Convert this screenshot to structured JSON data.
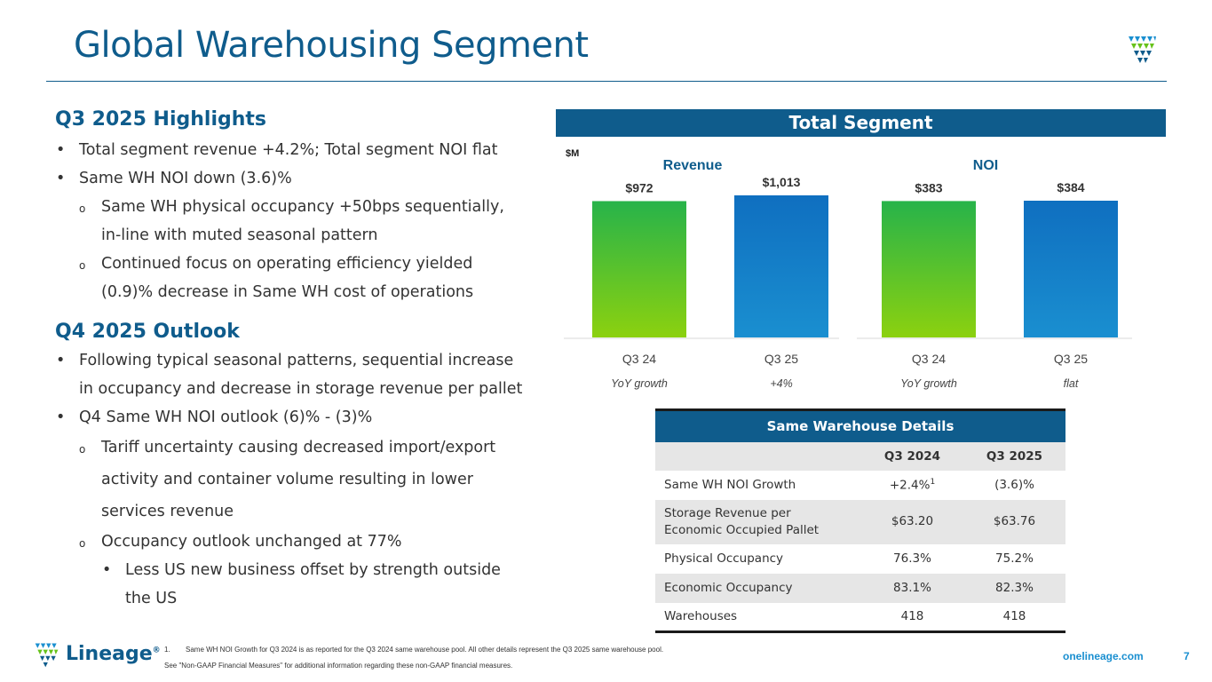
{
  "page": {
    "title": "Global Warehousing Segment",
    "page_number": "7",
    "website": "onelineage.com",
    "brand_name": "Lineage",
    "brand_mark": "®"
  },
  "highlights": {
    "heading": "Q3 2025 Highlights",
    "b1": "Total segment revenue +4.2%; Total segment NOI flat",
    "b2": "Same WH NOI down (3.6)%",
    "b2a_l1": "Same WH physical occupancy +50bps sequentially,",
    "b2a_l2": "in-line with muted seasonal pattern",
    "b2b_l1": "Continued focus on operating efficiency yielded",
    "b2b_l2": "(0.9)% decrease in Same WH cost of operations"
  },
  "outlook": {
    "heading": "Q4 2025 Outlook",
    "b1_l1": "Following typical seasonal patterns, sequential increase",
    "b1_l2": "in occupancy and decrease in storage revenue per pallet",
    "b2": "Q4 Same WH NOI outlook (6)% - (3)%",
    "b2a_l1": "Tariff uncertainty causing decreased import/export",
    "b2a_l2": "activity and container volume resulting in lower",
    "b2a_l3": "services revenue",
    "b2b": "Occupancy outlook unchanged at 77%",
    "b2b1_l1": "Less US new business offset by strength outside",
    "b2b1_l2": "the US"
  },
  "segment_header": "Total Segment",
  "chart_data": [
    {
      "type": "bar",
      "title": "Revenue",
      "unit_label": "$M",
      "categories": [
        "Q3 24",
        "Q3 25"
      ],
      "values": [
        972,
        1013
      ],
      "data_labels": [
        "$972",
        "$1,013"
      ],
      "growth_label": "YoY growth",
      "growth_value": "+4%",
      "colors": [
        "#66c21a",
        "#1478c8"
      ]
    },
    {
      "type": "bar",
      "title": "NOI",
      "categories": [
        "Q3 24",
        "Q3 25"
      ],
      "values": [
        383,
        384
      ],
      "data_labels": [
        "$383",
        "$384"
      ],
      "growth_label": "YoY growth",
      "growth_value": "flat",
      "colors": [
        "#66c21a",
        "#1478c8"
      ]
    }
  ],
  "table": {
    "caption": "Same Warehouse Details",
    "columns": [
      "",
      "Q3 2024",
      "Q3 2025"
    ],
    "rows": [
      {
        "label": "Same WH NOI Growth",
        "q3_2024": "+2.4%",
        "q3_2024_sup": "1",
        "q3_2025": "(3.6)%"
      },
      {
        "label_l1": "Storage Revenue per",
        "label_l2": "Economic Occupied Pallet",
        "q3_2024": "$63.20",
        "q3_2025": "$63.76"
      },
      {
        "label": "Physical Occupancy",
        "q3_2024": "76.3%",
        "q3_2025": "75.2%"
      },
      {
        "label": "Economic Occupancy",
        "q3_2024": "83.1%",
        "q3_2025": "82.3%"
      },
      {
        "label": "Warehouses",
        "q3_2024": "418",
        "q3_2025": "418"
      }
    ]
  },
  "footnotes": {
    "n1_num": "1.",
    "n1_text": "Same WH NOI Growth for Q3 2024 is as reported for the Q3 2024 same warehouse pool. All other details represent the Q3 2025 same warehouse pool.",
    "n2": "See \"Non-GAAP Financial Measures\" for additional information regarding these non-GAAP financial measures."
  },
  "colors": {
    "primary": "#0f5c8c",
    "accent": "#1a8fd0",
    "bar_q3_24": "#66c21a",
    "bar_q3_25": "#1478c8"
  }
}
